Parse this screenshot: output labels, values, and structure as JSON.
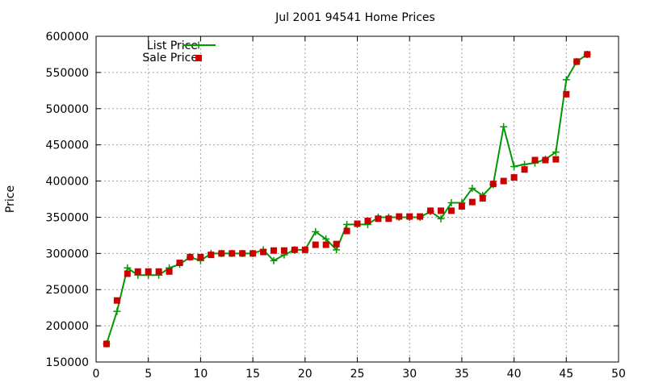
{
  "chart_data": {
    "type": "line",
    "title": "Jul 2001 94541 Home Prices",
    "ylabel": "Price",
    "xlabel": "",
    "xlim": [
      0,
      50
    ],
    "ylim": [
      150000,
      600000
    ],
    "xticks": [
      0,
      5,
      10,
      15,
      20,
      25,
      30,
      35,
      40,
      45,
      50
    ],
    "yticks": [
      150000,
      200000,
      250000,
      300000,
      350000,
      400000,
      450000,
      500000,
      550000,
      600000
    ],
    "grid": true,
    "legend_position": "top-left",
    "series": [
      {
        "name": "List Price",
        "style": "linespoints",
        "marker": "plus",
        "color": "#009900",
        "x": [
          1,
          2,
          3,
          4,
          5,
          6,
          7,
          8,
          9,
          10,
          11,
          12,
          13,
          14,
          15,
          16,
          17,
          18,
          19,
          20,
          21,
          22,
          23,
          24,
          25,
          26,
          27,
          28,
          29,
          30,
          31,
          32,
          33,
          34,
          35,
          36,
          37,
          38,
          39,
          40,
          41,
          42,
          43,
          44,
          45,
          46,
          47
        ],
        "values": [
          175000,
          220000,
          280000,
          270000,
          270000,
          270000,
          280000,
          285000,
          295000,
          290000,
          300000,
          300000,
          300000,
          300000,
          300000,
          305000,
          290000,
          298000,
          305000,
          305000,
          330000,
          320000,
          305000,
          340000,
          340000,
          340000,
          350000,
          350000,
          350000,
          350000,
          350000,
          358000,
          348000,
          370000,
          370000,
          390000,
          380000,
          395000,
          475000,
          420000,
          423000,
          425000,
          430000,
          440000,
          540000,
          565000,
          575000
        ]
      },
      {
        "name": "Sale Price",
        "style": "points",
        "marker": "square",
        "color": "#cc0000",
        "x": [
          1,
          2,
          3,
          4,
          5,
          6,
          7,
          8,
          9,
          10,
          11,
          12,
          13,
          14,
          15,
          16,
          17,
          18,
          19,
          20,
          21,
          22,
          23,
          24,
          25,
          26,
          27,
          28,
          29,
          30,
          31,
          32,
          33,
          34,
          35,
          36,
          37,
          38,
          39,
          40,
          41,
          42,
          43,
          44,
          45,
          46,
          47
        ],
        "values": [
          175000,
          235000,
          272000,
          275000,
          275000,
          275000,
          275000,
          287000,
          295000,
          295000,
          298000,
          300000,
          300000,
          300000,
          300000,
          302000,
          304000,
          304000,
          305000,
          305000,
          312000,
          312000,
          313000,
          331000,
          341000,
          345000,
          348000,
          348000,
          351000,
          351000,
          351000,
          359000,
          359000,
          359000,
          365000,
          371000,
          376000,
          396000,
          400000,
          405000,
          416000,
          429000,
          429000,
          430000,
          520000,
          565000,
          575000
        ]
      }
    ]
  }
}
